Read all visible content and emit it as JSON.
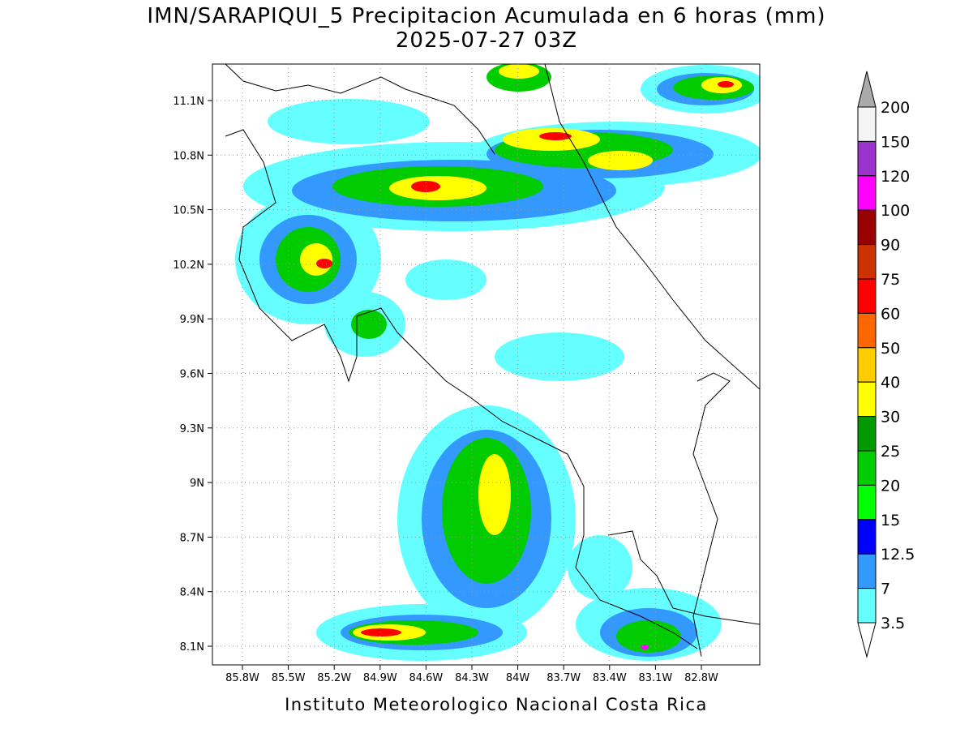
{
  "title": "IMN/SARAPIQUI_5 Precipitacion Acumulada en 6 horas (mm)",
  "subtitle": "2025-07-27 03Z",
  "map": {
    "lon_ticks": [
      "85.8W",
      "85.5W",
      "85.2W",
      "84.9W",
      "84.6W",
      "84.3W",
      "84W",
      "83.7W",
      "83.4W",
      "83.1W",
      "82.8W"
    ],
    "lat_ticks": [
      "11.1N",
      "10.8N",
      "10.5N",
      "10.2N",
      "9.9N",
      "9.6N",
      "9.3N",
      "9N",
      "8.7N",
      "8.4N",
      "8.1N"
    ]
  },
  "colorbar": {
    "labels": [
      "200",
      "150",
      "120",
      "100",
      "90",
      "75",
      "60",
      "50",
      "40",
      "30",
      "25",
      "20",
      "15",
      "12.5",
      "7",
      "3.5"
    ],
    "colors": [
      "#aaaaaa",
      "#f5f5f5",
      "#9933cc",
      "#ff00ff",
      "#990000",
      "#cc3300",
      "#ff0000",
      "#ff6600",
      "#ffcc00",
      "#ffff00",
      "#009900",
      "#00cc00",
      "#00ff00",
      "#0000ff",
      "#3399ff",
      "#66ffff",
      "#ffffff"
    ]
  },
  "footer": "Instituto Meteorologico Nacional Costa Rica"
}
